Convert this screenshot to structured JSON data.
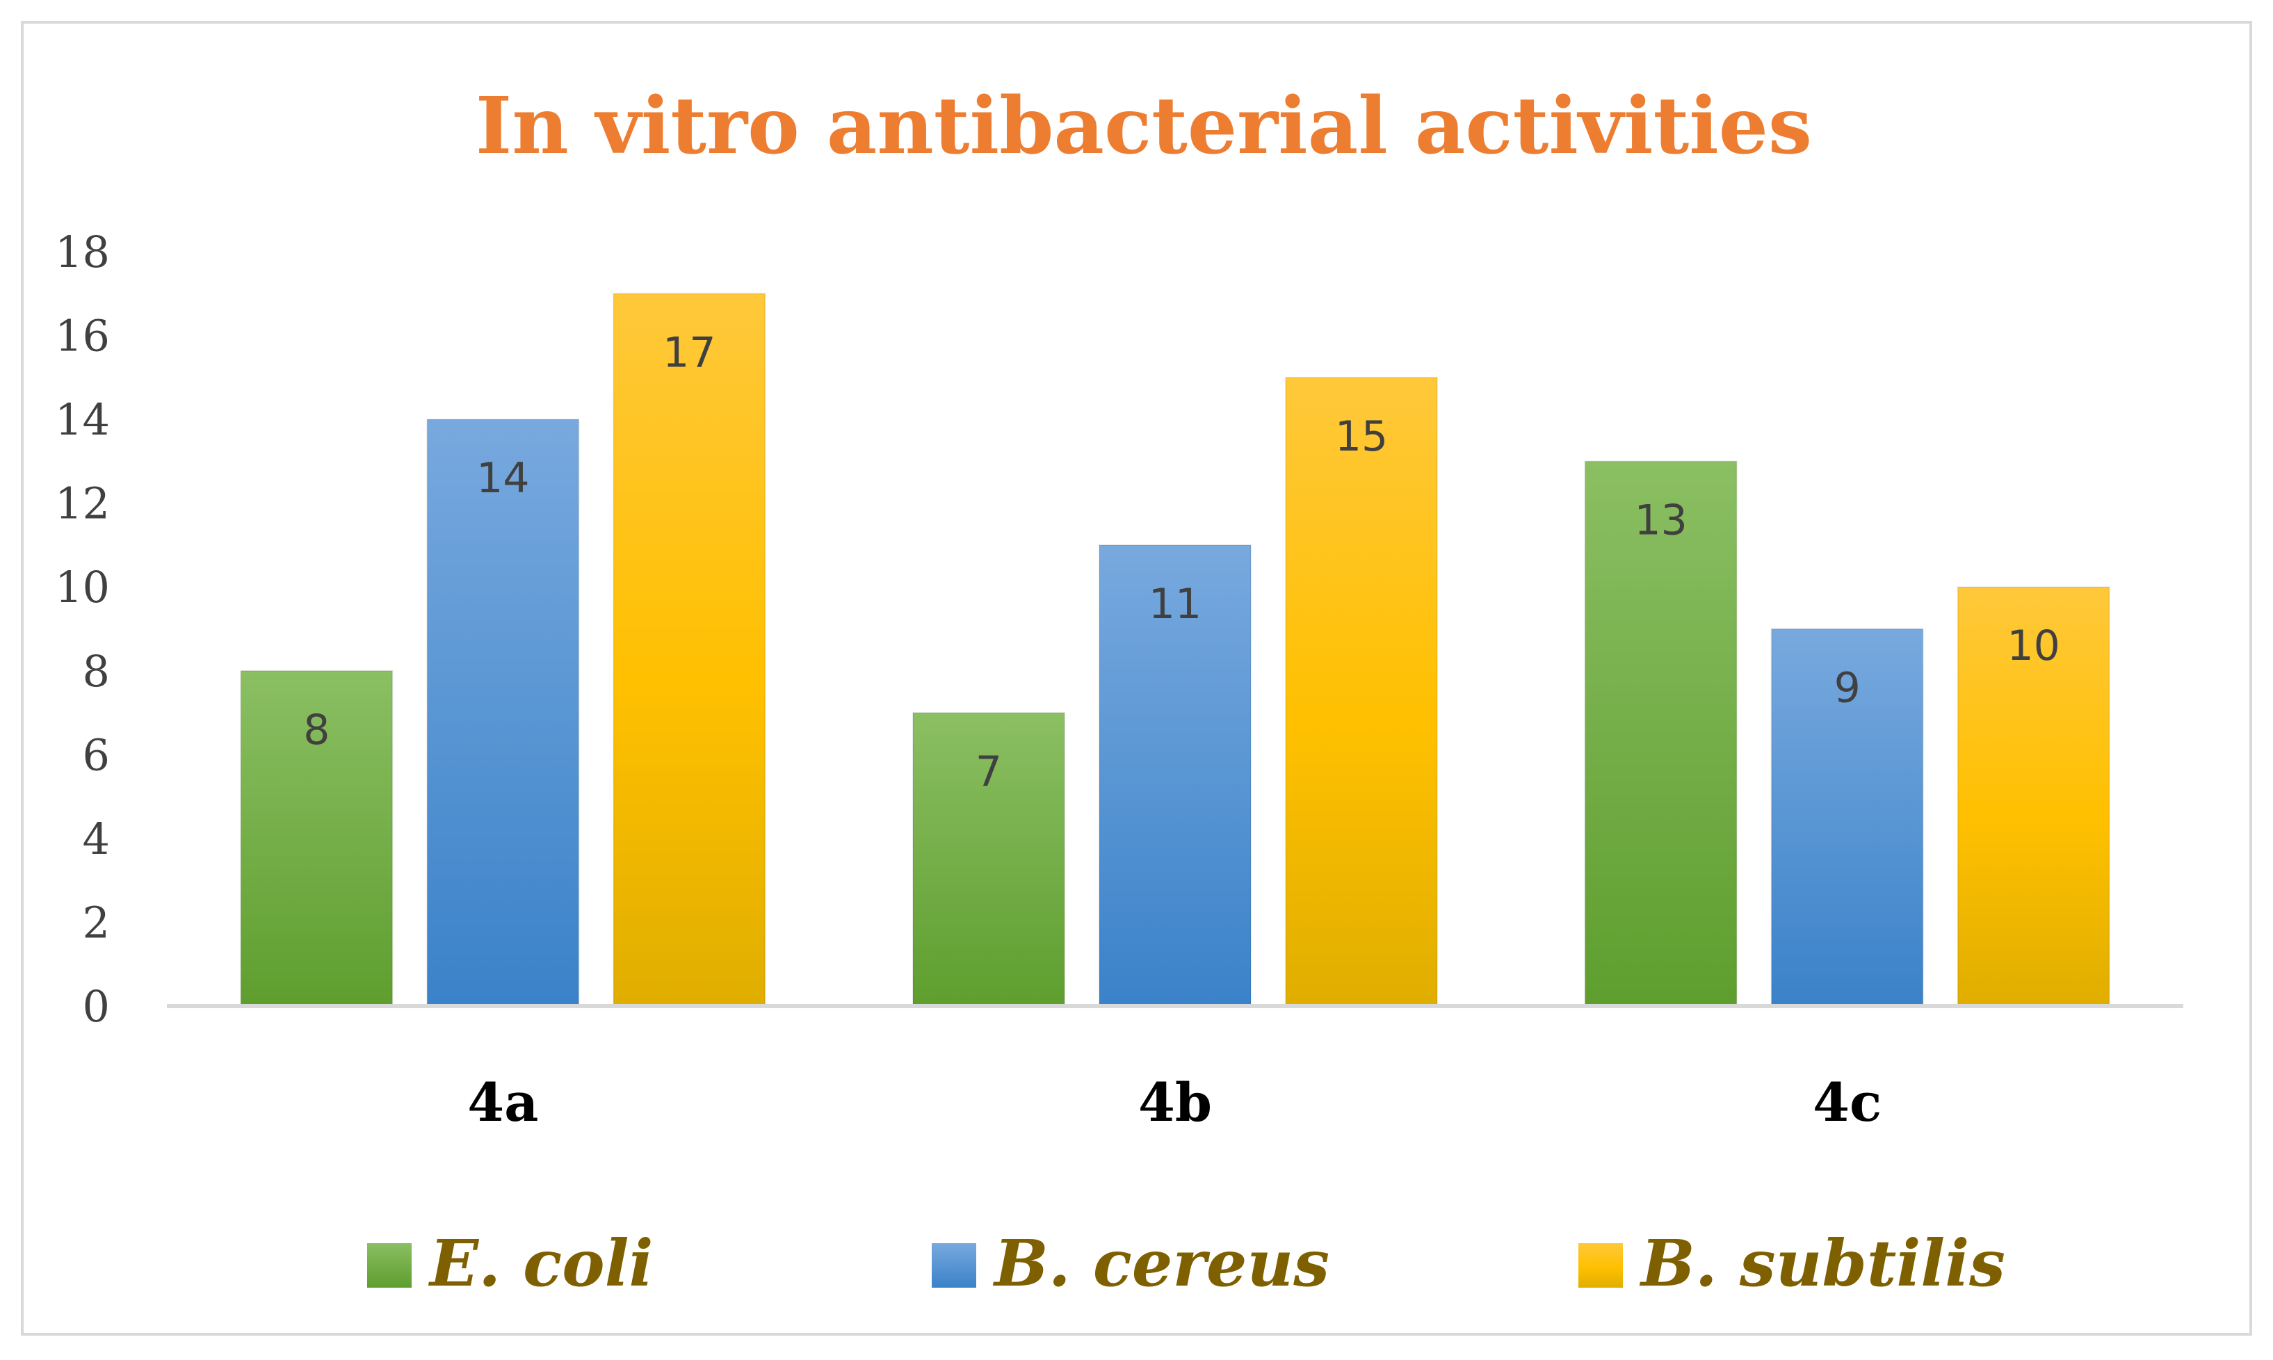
{
  "chart_data": {
    "type": "bar",
    "title": "In vitro antibacterial activities",
    "xlabel": "",
    "ylabel": "",
    "categories": [
      "4a",
      "4b",
      "4c"
    ],
    "series": [
      {
        "name": "E. coli",
        "values": [
          8,
          7,
          13
        ]
      },
      {
        "name": "B. cereus",
        "values": [
          14,
          11,
          9
        ]
      },
      {
        "name": "B. subtilis",
        "values": [
          17,
          15,
          10
        ]
      }
    ],
    "ylim": [
      0,
      18
    ],
    "yticks": [
      "0",
      "2",
      "4",
      "6",
      "8",
      "10",
      "12",
      "14",
      "16",
      "18"
    ],
    "grid": false,
    "legend_position": "bottom",
    "data_labels": true
  },
  "colors": {
    "title": "#ED7D31",
    "axis_text": "#404040",
    "category_text": "#000000",
    "legend_text": "#7F6000",
    "data_label": "#404040",
    "axis_line": "#D9D9D9",
    "frame": "#D9D9D9",
    "series": [
      {
        "top": "#8BBF63",
        "bottom": "#5E9E2E"
      },
      {
        "top": "#78A9DE",
        "bottom": "#3A82C9"
      },
      {
        "top": "#FFC83A",
        "mid": "#FFC000",
        "bottom": "#E0AE00"
      }
    ]
  }
}
